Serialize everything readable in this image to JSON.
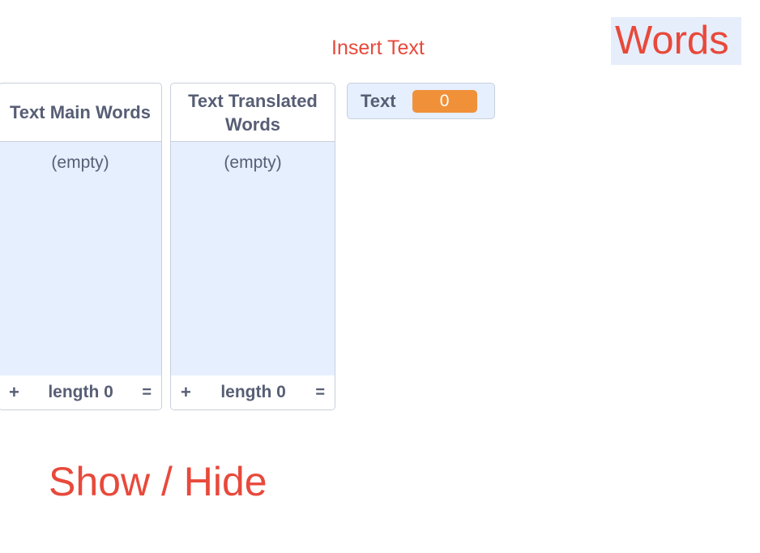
{
  "sprites": {
    "insert_text": "Insert Text",
    "words": "Words",
    "show_hide": "Show / Hide"
  },
  "lists": [
    {
      "title": "Text Main Words",
      "empty_label": "(empty)",
      "add_label": "+",
      "length_label": "length 0",
      "resize_label": "="
    },
    {
      "title": "Text Translated Words",
      "empty_label": "(empty)",
      "add_label": "+",
      "length_label": "length 0",
      "resize_label": "="
    }
  ],
  "variable": {
    "label": "Text",
    "value": "0"
  },
  "colors": {
    "sprite_text": "#e8493b",
    "monitor_bg": "#e5effe",
    "monitor_text": "#575e75",
    "variable_value_bg": "#f0913a"
  }
}
